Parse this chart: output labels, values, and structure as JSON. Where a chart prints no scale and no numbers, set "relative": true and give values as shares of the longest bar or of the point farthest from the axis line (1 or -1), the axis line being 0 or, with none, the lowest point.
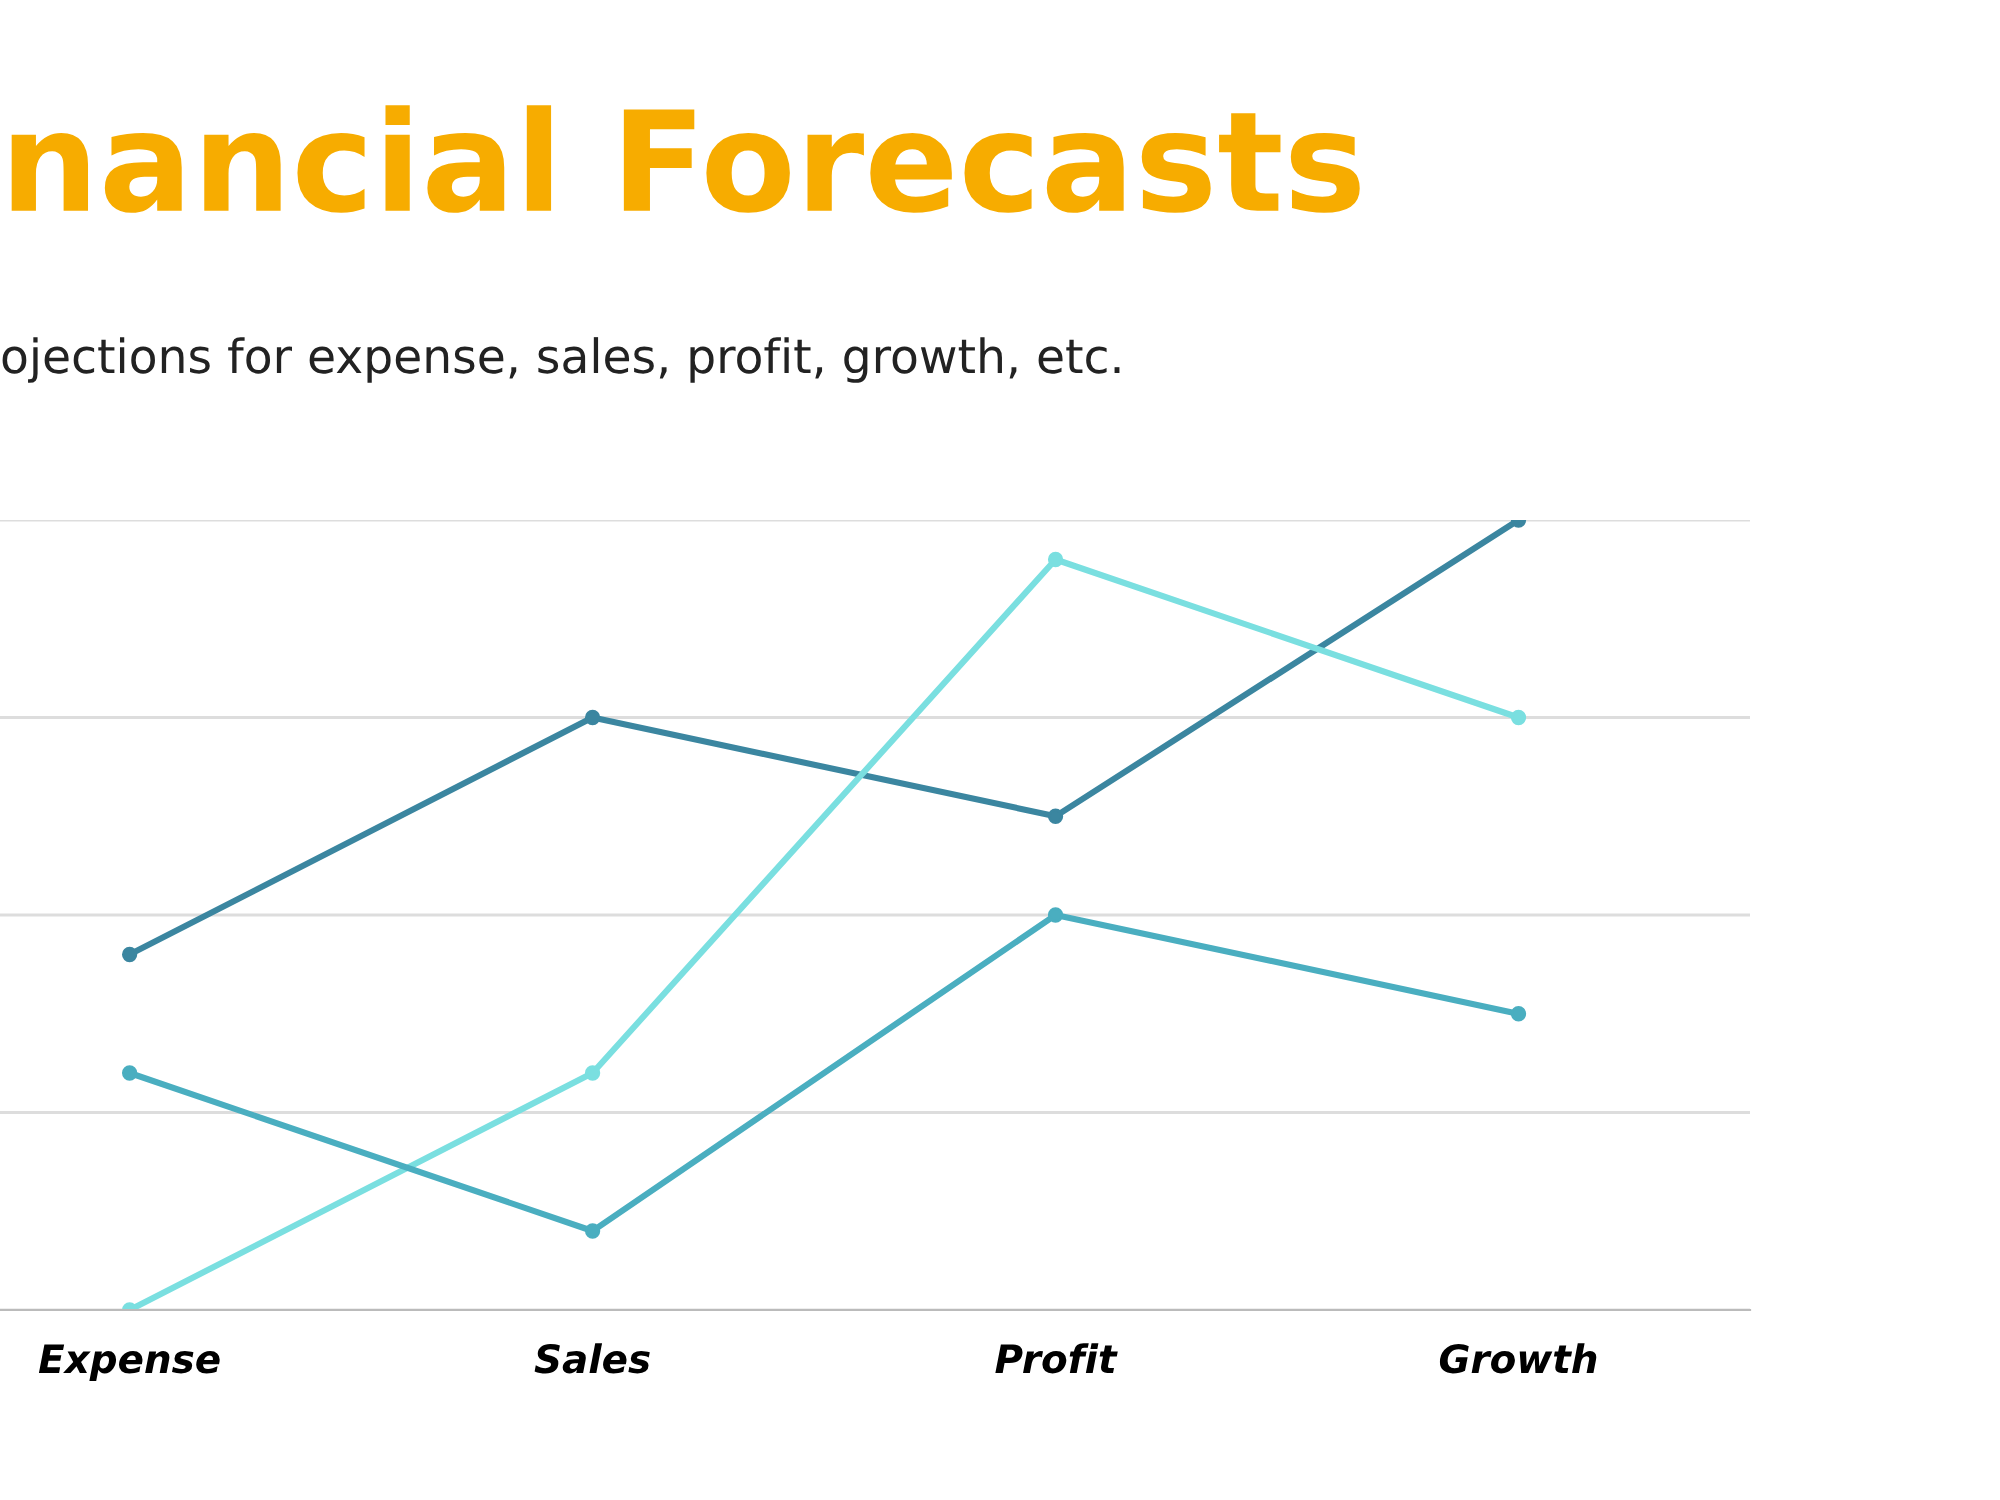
{
  "chart_data": {
    "type": "line",
    "title": "nancial Forecasts",
    "subtitle": "ojections for expense, sales, profit, growth, etc.",
    "categories": [
      "Expense",
      "Sales",
      "Profit",
      "Growth"
    ],
    "relative": true,
    "grid": "y",
    "marker": "circle",
    "line_style": "solid",
    "legend": false,
    "series": [
      {
        "color": "#3b86a0",
        "values": [
          0.45,
          0.75,
          0.625,
          1
        ]
      },
      {
        "color": "#7adfe0",
        "values": [
          0,
          0.3,
          0.95,
          0.75
        ]
      },
      {
        "color": "#4aaec0",
        "values": [
          0.3,
          0.1,
          0.5,
          0.375
        ]
      }
    ]
  }
}
